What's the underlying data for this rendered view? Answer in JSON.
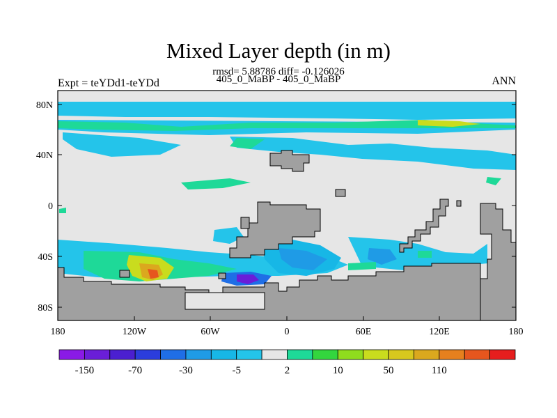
{
  "title": "Mixed Layer depth (in m)",
  "stats_line": "rmsd= 5.88786 diff= -0.126026",
  "case_line": "405_0_MaBP - 405_0_MaBP",
  "experiment_label": "Expt = teYDd1-teYDd",
  "season_label": "ANN",
  "lat_ticks": [
    "80N",
    "40N",
    "0",
    "40S",
    "80S"
  ],
  "lon_ticks": [
    "180",
    "120W",
    "60W",
    "0",
    "60E",
    "120E",
    "180"
  ],
  "colorbar": {
    "colors": [
      "#8a1ae6",
      "#6a1ed8",
      "#4b1fd0",
      "#2b3ddc",
      "#1f6ee6",
      "#1f9be6",
      "#17b7e6",
      "#24c4ea",
      "#e6e6e6",
      "#1ed998",
      "#33d63e",
      "#8fdc1e",
      "#c9dc1e",
      "#d8c81e",
      "#dba81e",
      "#e6801e",
      "#e6561e",
      "#e61e1e"
    ],
    "tick_labels": [
      "-150",
      "-70",
      "-30",
      "-5",
      "2",
      "10",
      "50",
      "110"
    ]
  },
  "colors": {
    "land": "#a0a0a0",
    "ocean_neutral": "#e6e6e6"
  }
}
